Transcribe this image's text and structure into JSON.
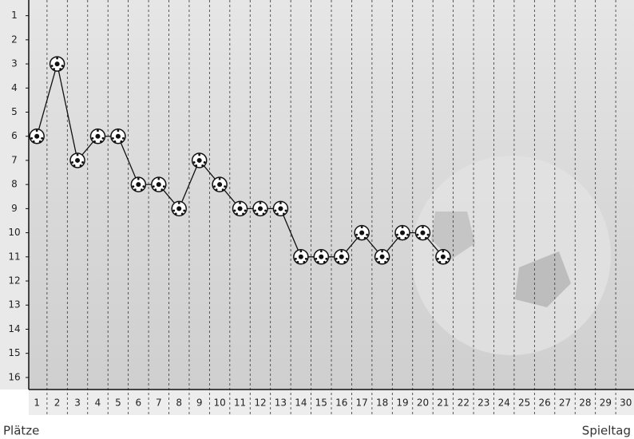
{
  "chart_data": {
    "type": "line",
    "y_label": "Plätze",
    "x_label": "Spieltag",
    "x": [
      1,
      2,
      3,
      4,
      5,
      6,
      7,
      8,
      9,
      10,
      11,
      12,
      13,
      14,
      15,
      16,
      17,
      18,
      19,
      20,
      21,
      22,
      23,
      24,
      25,
      26,
      27,
      28,
      29,
      30
    ],
    "series": [
      {
        "color": "#111111",
        "values": [
          6,
          3,
          7,
          6,
          6,
          8,
          8,
          9,
          7,
          8,
          9,
          9,
          9,
          11,
          11,
          11,
          10,
          11,
          10,
          10,
          11,
          null,
          null,
          null,
          null,
          null,
          null,
          null,
          null,
          null
        ]
      }
    ],
    "xlim": [
      0.6,
      30.4
    ],
    "xticks": [
      1,
      2,
      3,
      4,
      5,
      6,
      7,
      8,
      9,
      10,
      11,
      12,
      13,
      14,
      15,
      16,
      17,
      18,
      19,
      20,
      21,
      22,
      23,
      24,
      25,
      26,
      27,
      28,
      29,
      30
    ],
    "ylim": [
      16.5,
      0.35
    ],
    "yticks": [
      1,
      2,
      3,
      4,
      5,
      6,
      7,
      8,
      9,
      10,
      11,
      12,
      13,
      14,
      15,
      16
    ],
    "grid": true
  }
}
